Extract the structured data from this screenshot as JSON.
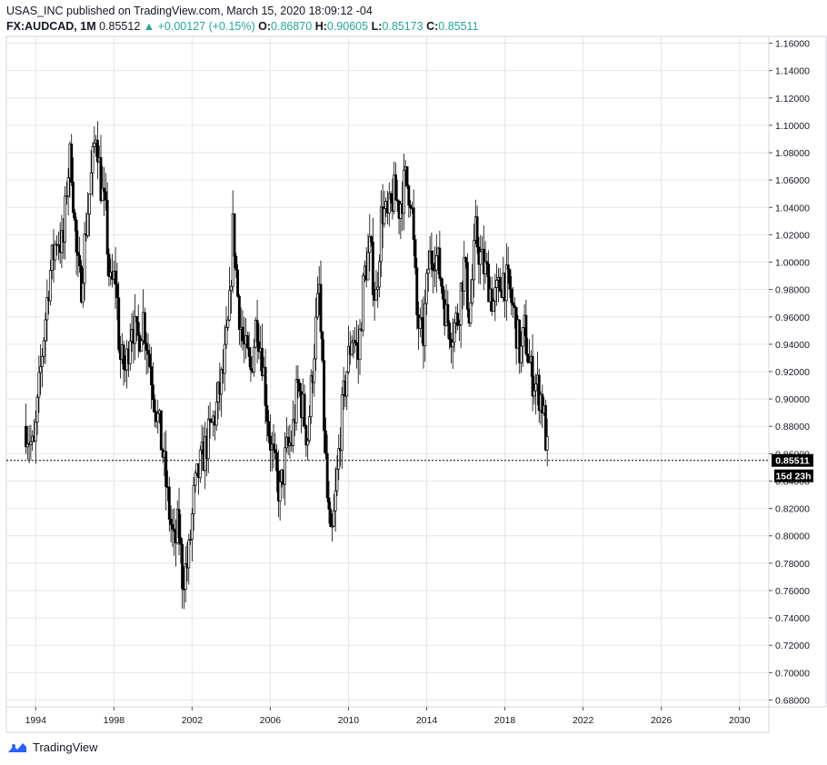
{
  "header": {
    "publisher": "USAS_INC published on TradingView.com, March 15, 2020 18:09:12 -04",
    "symbol": "FX:AUDCAD, 1M",
    "last": "0.85512",
    "change_arrow": "▲",
    "change": "+0.00127 (+0.15%)",
    "open_label": "O:",
    "open": "0.86870",
    "high_label": "H:",
    "high": "0.90605",
    "low_label": "L:",
    "low": "0.85173",
    "close_label": "C:",
    "close": "0.85511"
  },
  "price_label": "0.85511",
  "countdown_label": "15d 23h",
  "footer": {
    "brand": "TradingView",
    "logo_icon": "tradingview-logo-icon"
  },
  "colors": {
    "accent": "#26a69a",
    "candle": "#000000",
    "grid": "#e6e6e6",
    "price_tag": "#000000"
  },
  "chart_data": {
    "type": "candlestick",
    "interval": "1M",
    "symbol": "FX:AUDCAD",
    "x_ticks": [
      "1994",
      "1998",
      "2002",
      "2006",
      "2010",
      "2014",
      "2018",
      "2022",
      "2026",
      "2030"
    ],
    "y_ticks": [
      "0.68000",
      "0.70000",
      "0.72000",
      "0.74000",
      "0.76000",
      "0.78000",
      "0.80000",
      "0.82000",
      "0.84000",
      "0.86000",
      "0.88000",
      "0.90000",
      "0.92000",
      "0.94000",
      "0.96000",
      "0.98000",
      "1.00000",
      "1.02000",
      "1.04000",
      "1.06000",
      "1.08000",
      "1.10000",
      "1.12000",
      "1.14000",
      "1.16000"
    ],
    "xlim": [
      1992.5,
      2031.5
    ],
    "ylim": [
      0.675,
      1.165
    ],
    "last_price": 0.85511,
    "grid": true,
    "closes": [
      [
        1993.5,
        0.88
      ],
      [
        1993.9,
        0.86
      ],
      [
        1994.3,
        0.93
      ],
      [
        1994.7,
        0.99
      ],
      [
        1995.1,
        1.02
      ],
      [
        1995.4,
        1.01
      ],
      [
        1995.6,
        1.06
      ],
      [
        1995.8,
        1.08
      ],
      [
        1996.1,
        1.0
      ],
      [
        1996.3,
        0.98
      ],
      [
        1996.6,
        1.03
      ],
      [
        1996.9,
        1.07
      ],
      [
        1997.1,
        1.1
      ],
      [
        1997.3,
        1.06
      ],
      [
        1997.6,
        1.03
      ],
      [
        1997.8,
        0.98
      ],
      [
        1998.1,
        0.99
      ],
      [
        1998.3,
        0.93
      ],
      [
        1998.6,
        0.92
      ],
      [
        1998.9,
        0.96
      ],
      [
        1999.2,
        0.94
      ],
      [
        1999.5,
        0.96
      ],
      [
        1999.9,
        0.92
      ],
      [
        2000.2,
        0.89
      ],
      [
        2000.5,
        0.86
      ],
      [
        2000.8,
        0.82
      ],
      [
        2001.1,
        0.79
      ],
      [
        2001.3,
        0.81
      ],
      [
        2001.5,
        0.77
      ],
      [
        2001.8,
        0.78
      ],
      [
        2002.1,
        0.83
      ],
      [
        2002.4,
        0.85
      ],
      [
        2002.8,
        0.87
      ],
      [
        2003.2,
        0.89
      ],
      [
        2003.6,
        0.92
      ],
      [
        2003.9,
        0.96
      ],
      [
        2004.1,
        1.03
      ],
      [
        2004.3,
        0.98
      ],
      [
        2004.6,
        0.94
      ],
      [
        2005.0,
        0.92
      ],
      [
        2005.3,
        0.96
      ],
      [
        2005.6,
        0.93
      ],
      [
        2005.9,
        0.88
      ],
      [
        2006.2,
        0.85
      ],
      [
        2006.5,
        0.83
      ],
      [
        2006.8,
        0.86
      ],
      [
        2007.1,
        0.87
      ],
      [
        2007.4,
        0.91
      ],
      [
        2007.7,
        0.89
      ],
      [
        2007.9,
        0.87
      ],
      [
        2008.2,
        0.93
      ],
      [
        2008.5,
        0.98
      ],
      [
        2008.7,
        0.9
      ],
      [
        2008.9,
        0.83
      ],
      [
        2009.1,
        0.79
      ],
      [
        2009.3,
        0.82
      ],
      [
        2009.6,
        0.88
      ],
      [
        2009.9,
        0.92
      ],
      [
        2010.2,
        0.95
      ],
      [
        2010.5,
        0.93
      ],
      [
        2010.8,
        0.99
      ],
      [
        2011.1,
        1.01
      ],
      [
        2011.4,
        0.97
      ],
      [
        2011.7,
        1.04
      ],
      [
        2012.0,
        1.03
      ],
      [
        2012.3,
        1.05
      ],
      [
        2012.6,
        1.04
      ],
      [
        2012.9,
        1.06
      ],
      [
        2013.2,
        1.05
      ],
      [
        2013.5,
        0.96
      ],
      [
        2013.8,
        0.94
      ],
      [
        2014.1,
        1.0
      ],
      [
        2014.4,
        1.01
      ],
      [
        2014.7,
        0.99
      ],
      [
        2015.0,
        0.96
      ],
      [
        2015.3,
        0.95
      ],
      [
        2015.6,
        0.96
      ],
      [
        2015.9,
        1.0
      ],
      [
        2016.2,
        0.96
      ],
      [
        2016.5,
        1.02
      ],
      [
        2016.8,
        1.0
      ],
      [
        2017.1,
        0.99
      ],
      [
        2017.4,
        0.97
      ],
      [
        2017.7,
        0.98
      ],
      [
        2017.9,
        0.99
      ],
      [
        2018.2,
        0.98
      ],
      [
        2018.5,
        0.96
      ],
      [
        2018.8,
        0.93
      ],
      [
        2019.0,
        0.95
      ],
      [
        2019.3,
        0.92
      ],
      [
        2019.6,
        0.91
      ],
      [
        2019.9,
        0.9
      ],
      [
        2020.2,
        0.855
      ]
    ]
  }
}
